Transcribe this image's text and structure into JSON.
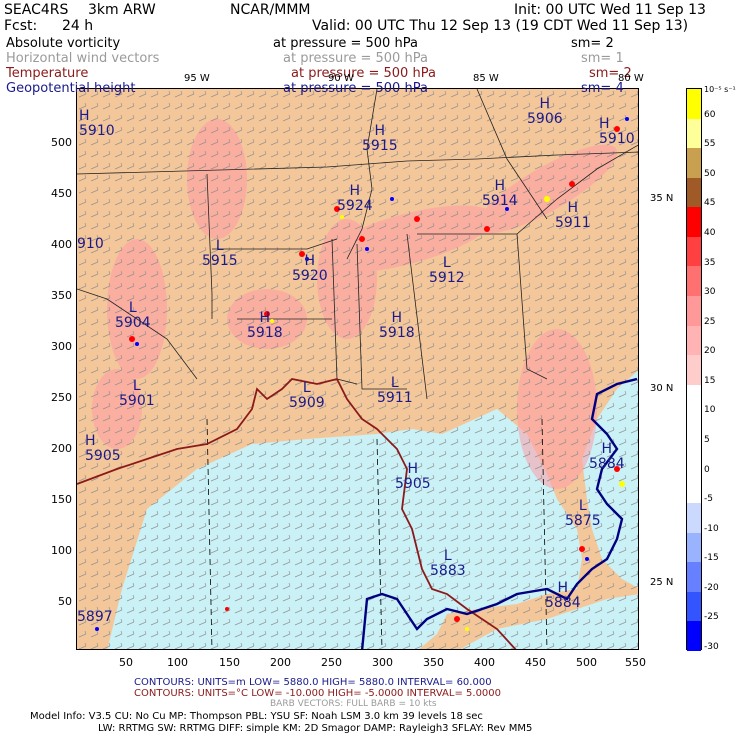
{
  "header": {
    "project": "SEAC4RS",
    "model_res": "3km ARW",
    "org": "NCAR/MMM",
    "init": "Init: 00 UTC Wed 11 Sep 13",
    "fcst_label": "Fcst:",
    "fcst_value": "24 h",
    "valid": "Valid: 00 UTC Thu 12 Sep 13 (19 CDT Wed 11 Sep 13)"
  },
  "fields": [
    {
      "name": "Absolute vorticity",
      "pressure": "at pressure =  500 hPa",
      "sm": "sm= 2",
      "color": "#000000"
    },
    {
      "name": "Horizontal wind vectors",
      "pressure": "at pressure =  500 hPa",
      "sm": "sm= 1",
      "color": "#9a9a9a"
    },
    {
      "name": "Temperature",
      "pressure": "at pressure =  500 hPa",
      "sm": "sm= 2",
      "color": "#8b1a1a"
    },
    {
      "name": "Geopotential height",
      "pressure": "at pressure =  500 hPa",
      "sm": "sm= 4",
      "color": "#1a1a8b"
    }
  ],
  "map": {
    "lon_labels": [
      "95 W",
      "90 W",
      "85 W",
      "80 W"
    ],
    "lat_labels": [
      "35 N",
      "30 N",
      "25 N"
    ],
    "x_ticks": [
      "50",
      "100",
      "150",
      "200",
      "250",
      "300",
      "350",
      "400",
      "450",
      "500",
      "550"
    ],
    "y_ticks": [
      "500",
      "450",
      "400",
      "350",
      "300",
      "250",
      "200",
      "150",
      "100",
      "50"
    ],
    "height_labels": [
      {
        "type": "H",
        "value": "5910"
      },
      {
        "type": "H",
        "value": "5915"
      },
      {
        "type": "H",
        "value": "5906"
      },
      {
        "type": "H",
        "value": "5924"
      },
      {
        "type": "H",
        "value": "5914"
      },
      {
        "type": "H",
        "value": "5911"
      },
      {
        "type": "",
        "value": "910"
      },
      {
        "type": "L",
        "value": "5915"
      },
      {
        "type": "H",
        "value": "5920"
      },
      {
        "type": "L",
        "value": "5912"
      },
      {
        "type": "L",
        "value": "5904"
      },
      {
        "type": "H",
        "value": "5918"
      },
      {
        "type": "H",
        "value": "5918"
      },
      {
        "type": "L",
        "value": "5901"
      },
      {
        "type": "L",
        "value": "5909"
      },
      {
        "type": "L",
        "value": "5911"
      },
      {
        "type": "H",
        "value": "5905"
      },
      {
        "type": "H",
        "value": "5905"
      },
      {
        "type": "H",
        "value": "5884"
      },
      {
        "type": "L",
        "value": "5875"
      },
      {
        "type": "L",
        "value": "5883"
      },
      {
        "type": "H",
        "value": "5884"
      },
      {
        "type": "",
        "value": "5897"
      },
      {
        "type": "H",
        "value": "5910"
      }
    ],
    "colors": {
      "land": "#f4c79a",
      "ocean": "#c9f1f6",
      "border": "#222222",
      "height_contour": "#000080",
      "temp_contour": "#8b1a1a"
    }
  },
  "colorbar": {
    "unit_label": "10⁻⁵ s⁻¹",
    "ticks": [
      "60",
      "55",
      "50",
      "45",
      "40",
      "35",
      "30",
      "25",
      "20",
      "15",
      "10",
      "5",
      "0",
      "-5",
      "-10",
      "-15",
      "-20",
      "-25",
      "-30"
    ],
    "colors": [
      "#ffff00",
      "#ffff99",
      "#c8a050",
      "#a05a28",
      "#ff0000",
      "#ff4040",
      "#ff7070",
      "#ff9999",
      "#ffb3b3",
      "#ffcccc",
      "#ffffff",
      "#ffffff",
      "#ffffff",
      "#ffffff",
      "#ccd9ff",
      "#99b3ff",
      "#6680ff",
      "#3355ff",
      "#0000ff"
    ]
  },
  "footer": {
    "contours1": "CONTOURS:  UNITS=m  LOW=  5880.0          HIGH=  5880.0          INTERVAL=  60.000",
    "contours2": "CONTOURS:  UNITS=°C  LOW=  -10.000          HIGH=  -5.0000          INTERVAL=  5.0000",
    "barb": "BARB VECTORS:  FULL BARB = 10 kts",
    "model1": "Model Info: V3.5      CU: No Cu      MP: Thompson      PBL: YSU      SF: Noah LSM      3.0 km  39 levels  18 sec",
    "model2": "LW: RRTMG    SW: RRTMG   DIFF: simple KM: 2D Smagor DAMP: Rayleigh3  SFLAY: Rev MM5"
  }
}
